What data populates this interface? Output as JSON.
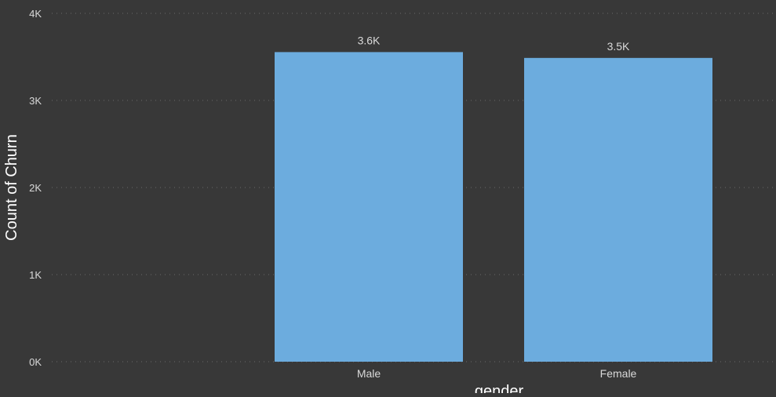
{
  "colors": {
    "background": "#383838",
    "bar": "#6cacde",
    "text": "#d9d9d9",
    "axis_title": "#ffffff",
    "gridline": "#6a6a6a"
  },
  "chart_data": {
    "type": "bar",
    "title": "",
    "xlabel": "gender",
    "ylabel": "Count of Churn",
    "categories": [
      "Male",
      "Female"
    ],
    "series": [
      {
        "values": [
          3555,
          3488
        ]
      }
    ],
    "data_labels": [
      "3.6K",
      "3.5K"
    ],
    "ylim": [
      0,
      4000
    ],
    "yticks": [
      0,
      1000,
      2000,
      3000,
      4000
    ],
    "ytick_labels": [
      "0K",
      "1K",
      "2K",
      "3K",
      "4K"
    ],
    "grid": true,
    "legend": "none"
  }
}
